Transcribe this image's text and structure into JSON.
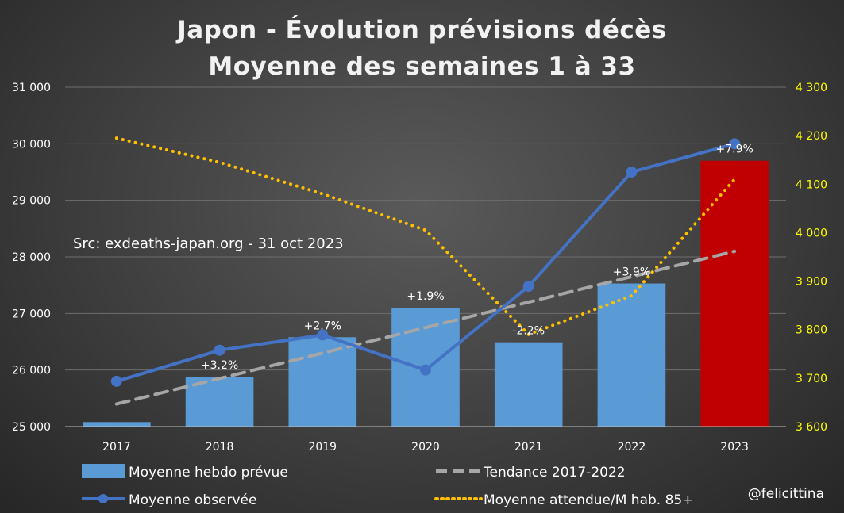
{
  "chart_data": {
    "type": "bar",
    "title": "Japon - Évolution prévisions décès",
    "subtitle": "Moyenne des semaines 1 à 33",
    "categories": [
      "2017",
      "2018",
      "2019",
      "2020",
      "2021",
      "2022",
      "2023"
    ],
    "y_left": {
      "min": 25000,
      "max": 31000,
      "step": 1000,
      "tick_labels": [
        "25 000",
        "26 000",
        "27 000",
        "28 000",
        "29 000",
        "30 000",
        "31 000"
      ]
    },
    "y_right": {
      "min": 3600,
      "max": 4300,
      "step": 100,
      "tick_labels": [
        "3 600",
        "3 700",
        "3 800",
        "3 900",
        "4 000",
        "4 100",
        "4 200",
        "4 300"
      ]
    },
    "grid": true,
    "legend_position": "bottom",
    "series": [
      {
        "name": "Moyenne hebdo prévue",
        "kind": "bar",
        "axis": "left",
        "values": [
          25080,
          25880,
          26580,
          27100,
          26490,
          27530,
          29700
        ],
        "colors": [
          "#5b9bd5",
          "#5b9bd5",
          "#5b9bd5",
          "#5b9bd5",
          "#5b9bd5",
          "#5b9bd5",
          "#c00000"
        ]
      },
      {
        "name": "Moyenne observée",
        "kind": "line",
        "axis": "left",
        "color": "#4472c4",
        "values": [
          25800,
          26350,
          26620,
          26000,
          27480,
          29500,
          30000
        ],
        "labels": [
          "",
          "+3.2%",
          "+2.7%",
          "+1.9%",
          "-2.2%",
          "+3.9%",
          "+7.9%"
        ]
      },
      {
        "name": "Tendance 2017-2022",
        "kind": "dashed-line",
        "axis": "left",
        "color": "#a6a6a6",
        "values": [
          25400,
          25850,
          26300,
          26750,
          27200,
          27650,
          28100
        ]
      },
      {
        "name": "Moyenne attendue/M hab. 85+",
        "kind": "dotted-line",
        "axis": "right",
        "color": "#ffc000",
        "values": [
          4195,
          4145,
          4080,
          4005,
          3790,
          3870,
          4110
        ]
      }
    ]
  },
  "source_note": "Src: exdeaths-japan.org - 31 oct 2023",
  "credit": "@felicittina"
}
